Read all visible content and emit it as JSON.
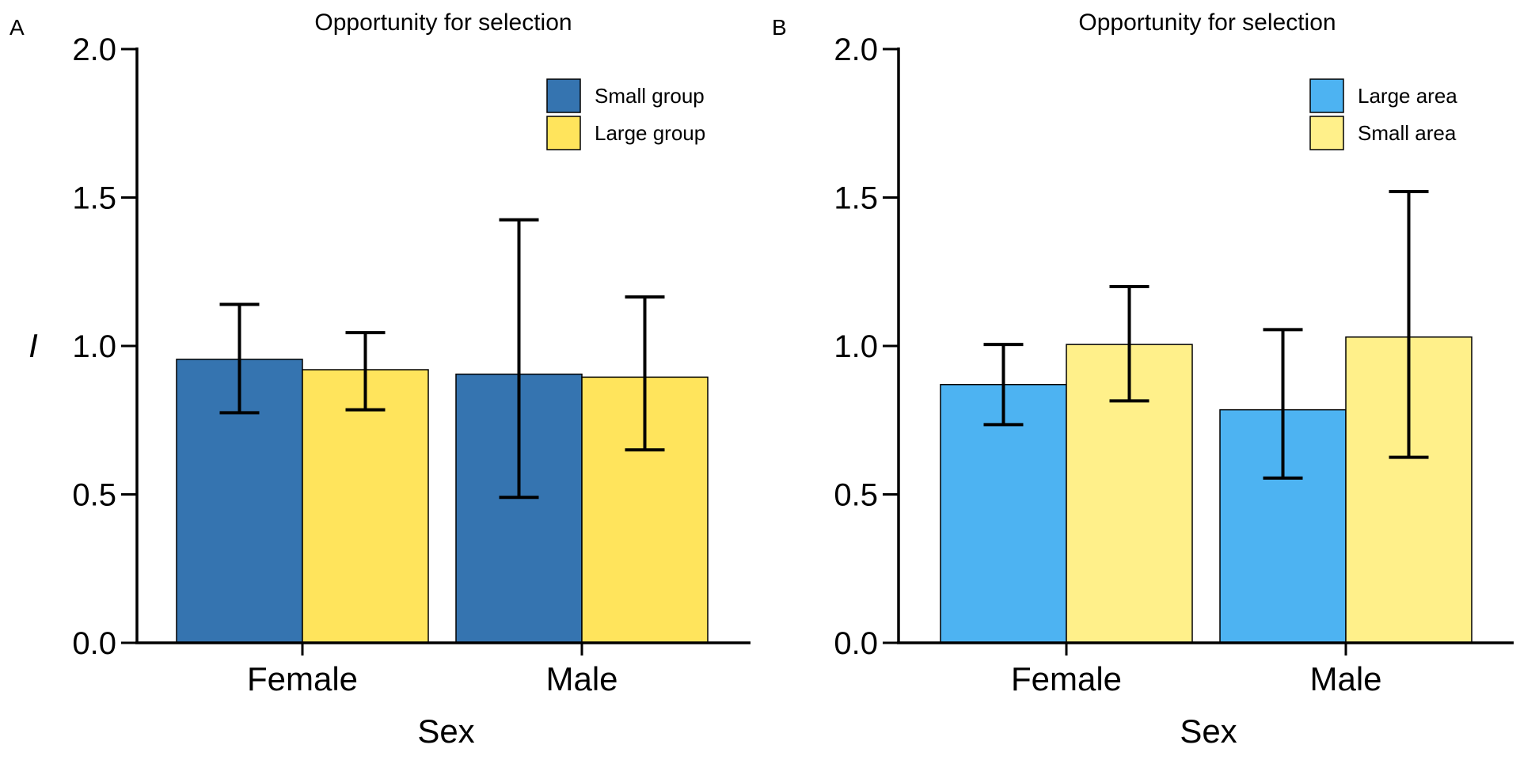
{
  "chart_data": [
    {
      "type": "bar",
      "panel_label": "A",
      "title": "Opportunity for selection",
      "xlabel": "Sex",
      "ylabel": "I",
      "ylim": [
        0,
        2
      ],
      "yticks": [
        "0.0",
        "0.5",
        "1.0",
        "1.5",
        "2.0"
      ],
      "categories": [
        "Female",
        "Male"
      ],
      "legend_position": "top-right",
      "grid": false,
      "series": [
        {
          "name": "Small group",
          "color": "#3574B0",
          "values": [
            0.955,
            0.905
          ],
          "err_low": [
            0.775,
            0.49
          ],
          "err_high": [
            1.14,
            1.425
          ]
        },
        {
          "name": "Large group",
          "color": "#FFE45C",
          "values": [
            0.92,
            0.895
          ],
          "err_low": [
            0.785,
            0.65
          ],
          "err_high": [
            1.045,
            1.165
          ]
        }
      ]
    },
    {
      "type": "bar",
      "panel_label": "B",
      "title": "Opportunity for selection",
      "xlabel": "Sex",
      "ylabel": "",
      "ylim": [
        0,
        2
      ],
      "yticks": [
        "0.0",
        "0.5",
        "1.0",
        "1.5",
        "2.0"
      ],
      "categories": [
        "Female",
        "Male"
      ],
      "legend_position": "top-right",
      "grid": false,
      "series": [
        {
          "name": "Large area",
          "color": "#4DB3F2",
          "values": [
            0.87,
            0.785
          ],
          "err_low": [
            0.735,
            0.555
          ],
          "err_high": [
            1.005,
            1.055
          ]
        },
        {
          "name": "Small area",
          "color": "#FFF08A",
          "values": [
            1.005,
            1.03
          ],
          "err_low": [
            0.815,
            0.625
          ],
          "err_high": [
            1.2,
            1.52
          ]
        }
      ]
    }
  ]
}
